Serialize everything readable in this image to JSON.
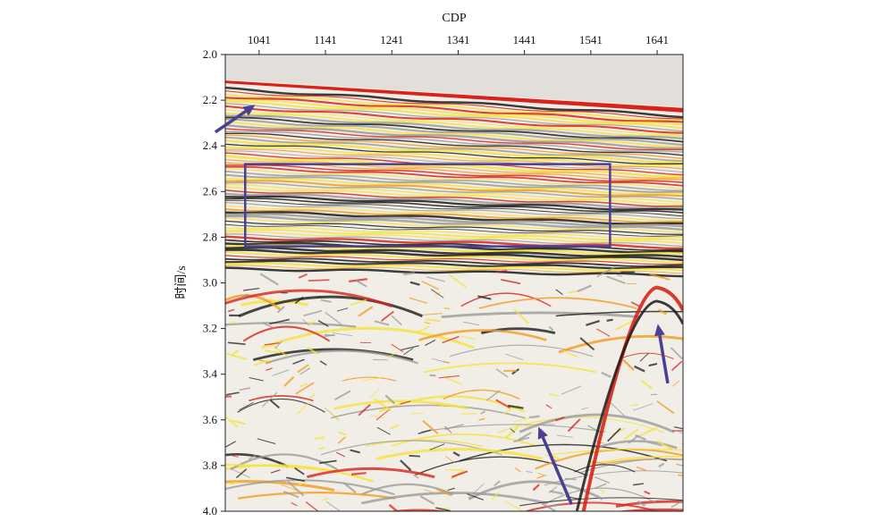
{
  "chart_data": {
    "type": "heatmap",
    "title": "",
    "xlabel": "CDP",
    "ylabel": "时间/s",
    "x_axis_position": "top",
    "xlim": [
      990,
      1680
    ],
    "ylim": [
      2.0,
      4.0
    ],
    "y_inverted": true,
    "x_ticks": [
      1041,
      1141,
      1241,
      1341,
      1441,
      1541,
      1641
    ],
    "y_ticks": [
      "2.0",
      "2.2",
      "2.4",
      "2.6",
      "2.8",
      "3.0",
      "3.2",
      "3.4",
      "3.6",
      "3.8",
      "4.0"
    ],
    "grid": false,
    "legend": "none",
    "colormap": [
      "#f2f2f2",
      "#f6e23a",
      "#f39a1c",
      "#d8231a",
      "#1a1a1a"
    ],
    "annotations": [
      {
        "kind": "box",
        "x": [
          1020,
          1570
        ],
        "y": [
          2.48,
          2.84
        ],
        "color": "#4a3f93"
      },
      {
        "kind": "arrow",
        "from": [
          975,
          2.34
        ],
        "to": [
          1035,
          2.22
        ],
        "color": "#4a3f93"
      },
      {
        "kind": "arrow",
        "from": [
          1512,
          3.97
        ],
        "to": [
          1462,
          3.63
        ],
        "color": "#4a3f93"
      },
      {
        "kind": "arrow",
        "from": [
          1657,
          3.44
        ],
        "to": [
          1642,
          3.18
        ],
        "color": "#4a3f93"
      }
    ]
  }
}
